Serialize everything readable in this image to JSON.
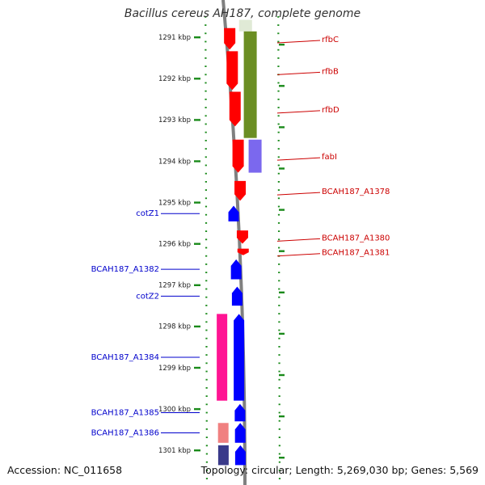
{
  "title": "Bacillus cereus AH187, complete genome",
  "accession": "Accession: NC_011658",
  "topology": "Topology: circular; Length: 5,269,030 bp; Genes: 5,569",
  "colors": {
    "backbone": "#808080",
    "ruler_tick": "#1a8a1a",
    "forward_gene": "#ff0000",
    "reverse_gene": "#0000ff",
    "forward_label": "#cc0000",
    "reverse_label": "#0000cc",
    "track_olive": "#6b8e23",
    "track_pale": "#e0ead6",
    "track_purple": "#7b68ee",
    "track_magenta": "#ff1493",
    "track_pink": "#f08080",
    "track_navy": "#3a3a8a"
  },
  "ruler": {
    "unit": "kbp",
    "positions_kbp": [
      1291,
      1292,
      1293,
      1294,
      1295,
      1296,
      1297,
      1298,
      1299,
      1300,
      1301
    ],
    "labels": [
      "1291 kbp",
      "1292 kbp",
      "1293 kbp",
      "1294 kbp",
      "1295 kbp",
      "1296 kbp",
      "1297 kbp",
      "1298 kbp",
      "1299 kbp",
      "1300 kbp",
      "1301 kbp"
    ]
  },
  "genes_forward": [
    {
      "name": "rfbC",
      "start_kbp": 1290.78,
      "end_kbp": 1291.3
    },
    {
      "name": "rfbB",
      "start_kbp": 1291.34,
      "end_kbp": 1292.28
    },
    {
      "name": "rfbD",
      "start_kbp": 1292.32,
      "end_kbp": 1293.16
    },
    {
      "name": "fabI",
      "start_kbp": 1293.48,
      "end_kbp": 1294.28
    },
    {
      "name": "BCAH187_A1378",
      "start_kbp": 1294.48,
      "end_kbp": 1294.96
    },
    {
      "name": "BCAH187_A1380",
      "start_kbp": 1295.68,
      "end_kbp": 1296.0
    },
    {
      "name": "BCAH187_A1381",
      "start_kbp": 1296.12,
      "end_kbp": 1296.28
    }
  ],
  "genes_reverse": [
    {
      "name": "cotZ1",
      "start_kbp": 1295.08,
      "end_kbp": 1295.46
    },
    {
      "name": "BCAH187_A1382",
      "start_kbp": 1296.38,
      "end_kbp": 1296.86
    },
    {
      "name": "cotZ2",
      "start_kbp": 1297.04,
      "end_kbp": 1297.5
    },
    {
      "name": "BCAH187_A1384",
      "start_kbp": 1297.7,
      "end_kbp": 1299.8
    },
    {
      "name": "BCAH187_A1385",
      "start_kbp": 1299.88,
      "end_kbp": 1300.3
    },
    {
      "name": "BCAH187_A1386",
      "start_kbp": 1300.34,
      "end_kbp": 1300.82
    },
    {
      "name": "",
      "start_kbp": 1300.88,
      "end_kbp": 1301.36
    }
  ],
  "tracks": [
    {
      "color": "track_pale",
      "lane": "right",
      "start_kbp": 1290.58,
      "end_kbp": 1290.86
    },
    {
      "color": "track_olive",
      "lane": "right",
      "start_kbp": 1290.86,
      "end_kbp": 1293.44
    },
    {
      "color": "track_purple",
      "lane": "right",
      "start_kbp": 1293.48,
      "end_kbp": 1294.28
    },
    {
      "color": "track_magenta",
      "lane": "left",
      "start_kbp": 1297.7,
      "end_kbp": 1299.8
    },
    {
      "color": "track_pink",
      "lane": "left",
      "start_kbp": 1300.34,
      "end_kbp": 1300.82
    },
    {
      "color": "track_navy",
      "lane": "left",
      "start_kbp": 1300.88,
      "end_kbp": 1301.36
    }
  ]
}
